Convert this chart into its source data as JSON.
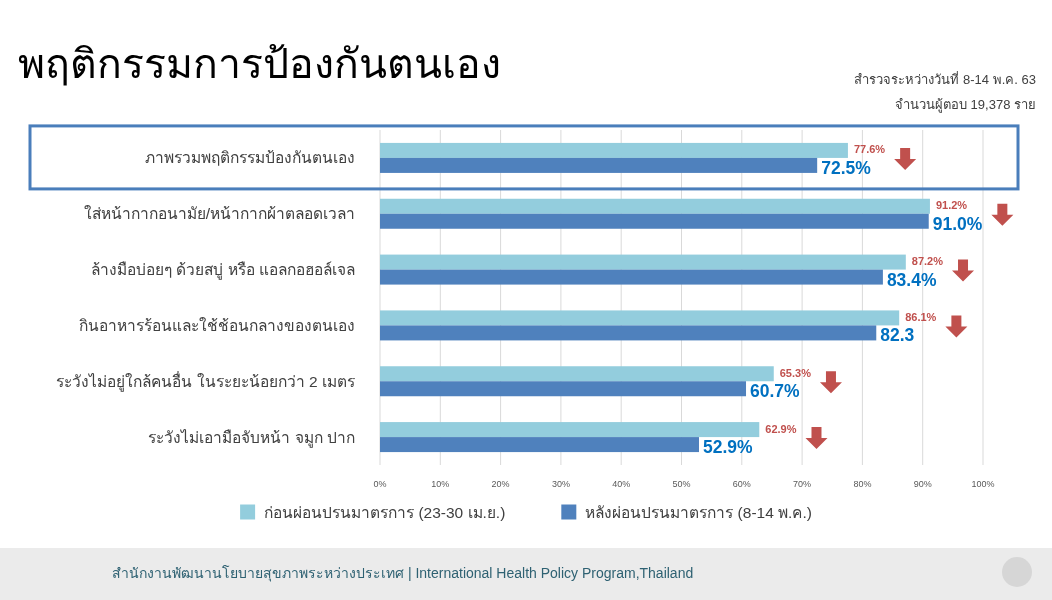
{
  "chart_data": {
    "type": "bar",
    "orientation": "horizontal",
    "title": "พฤติกรรมการป้องกันตนเอง",
    "subtitle": "สำรวจระหว่างวันที่ 8-14 พ.ค. 63",
    "annotations": [
      "จำนวนผู้ตอบ 19,378 ราย",
      "สำนักงานพัฒนานโยบายสุขภาพระหว่างประเทศ | International Health Policy Program,Thailand"
    ],
    "categories": [
      "ภาพรวมพฤติกรรมป้องกันตนเอง",
      "ใส่หน้ากากอนามัย/หน้ากากผ้าตลอดเวลา",
      "ล้างมือบ่อยๆ ด้วยสบู่ หรือ แอลกอฮอล์เจล",
      "กินอาหารร้อนและใช้ช้อนกลางของตนเอง",
      "ระวังไม่อยู่ใกล้คนอื่น ในระยะน้อยกว่า 2 เมตร",
      "ระวังไม่เอามือจับหน้า จมูก ปาก"
    ],
    "series": [
      {
        "name": "ก่อนผ่อนปรนมาตรการ (23-30 เม.ย.)",
        "color": "#93cddd",
        "values": [
          77.6,
          91.2,
          87.2,
          86.1,
          65.3,
          62.9
        ],
        "value_labels": [
          "77.6%",
          "91.2%",
          "87.2%",
          "86.1%",
          "65.3%",
          "62.9%"
        ]
      },
      {
        "name": "หลังผ่อนปรนมาตรการ (8-14 พ.ค.)",
        "color": "#4f81bd",
        "values": [
          72.5,
          91.0,
          83.4,
          82.3,
          60.7,
          52.9
        ],
        "value_labels": [
          "72.5%",
          "91.0%",
          "83.4%",
          "82.3",
          "60.7%",
          "52.9%"
        ]
      }
    ],
    "xlim": [
      0,
      100
    ],
    "xticks": [
      {
        "value": 0,
        "label": "0%"
      },
      {
        "value": 10,
        "label": "10%"
      },
      {
        "value": 20,
        "label": "20%"
      },
      {
        "value": 30,
        "label": "30%"
      },
      {
        "value": 40,
        "label": "40%"
      },
      {
        "value": 50,
        "label": "50%"
      },
      {
        "value": 60,
        "label": "60%"
      },
      {
        "value": 70,
        "label": "70%"
      },
      {
        "value": 80,
        "label": "80%"
      },
      {
        "value": 90,
        "label": "90%"
      },
      {
        "value": 100,
        "label": "100%"
      }
    ],
    "grid": "x",
    "legend": "bottom"
  }
}
